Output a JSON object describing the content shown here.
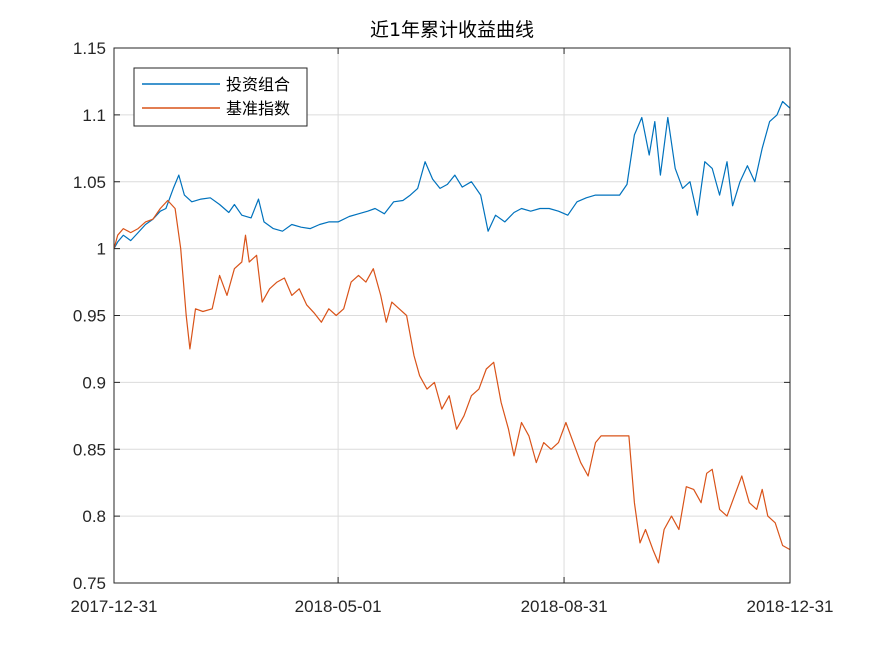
{
  "chart_data": {
    "type": "line",
    "title": "近1年累计收益曲线",
    "xlabel": "",
    "ylabel": "",
    "x_tick_labels": [
      "2017-12-31",
      "2018-05-01",
      "2018-08-31",
      "2018-12-31"
    ],
    "x_ticks": [
      "2017-12-31",
      "2018-05-01",
      "2018-08-31",
      "2018-12-31"
    ],
    "xlim": [
      "2017-12-31",
      "2018-12-31"
    ],
    "y_tick_labels": [
      "0.75",
      "0.8",
      "0.85",
      "0.9",
      "0.95",
      "1",
      "1.05",
      "1.1",
      "1.15"
    ],
    "y_ticks": [
      0.75,
      0.8,
      0.85,
      0.9,
      0.95,
      1.0,
      1.05,
      1.1,
      1.15
    ],
    "ylim": [
      0.75,
      1.15
    ],
    "grid": true,
    "legend_position": "top-left",
    "series": [
      {
        "name": "投资组合",
        "color": "#0072BD",
        "points": [
          [
            "2017-12-31",
            1.0
          ],
          [
            "2018-01-02",
            1.005
          ],
          [
            "2018-01-05",
            1.01
          ],
          [
            "2018-01-09",
            1.006
          ],
          [
            "2018-01-13",
            1.012
          ],
          [
            "2018-01-17",
            1.018
          ],
          [
            "2018-01-21",
            1.022
          ],
          [
            "2018-01-25",
            1.028
          ],
          [
            "2018-01-28",
            1.03
          ],
          [
            "2018-02-01",
            1.045
          ],
          [
            "2018-02-04",
            1.055
          ],
          [
            "2018-02-07",
            1.04
          ],
          [
            "2018-02-11",
            1.035
          ],
          [
            "2018-02-16",
            1.037
          ],
          [
            "2018-02-21",
            1.038
          ],
          [
            "2018-02-26",
            1.033
          ],
          [
            "2018-03-03",
            1.027
          ],
          [
            "2018-03-06",
            1.033
          ],
          [
            "2018-03-10",
            1.025
          ],
          [
            "2018-03-15",
            1.023
          ],
          [
            "2018-03-19",
            1.037
          ],
          [
            "2018-03-22",
            1.02
          ],
          [
            "2018-03-27",
            1.015
          ],
          [
            "2018-04-01",
            1.013
          ],
          [
            "2018-04-06",
            1.018
          ],
          [
            "2018-04-11",
            1.016
          ],
          [
            "2018-04-16",
            1.015
          ],
          [
            "2018-04-21",
            1.018
          ],
          [
            "2018-04-26",
            1.02
          ],
          [
            "2018-05-01",
            1.02
          ],
          [
            "2018-05-07",
            1.024
          ],
          [
            "2018-05-12",
            1.026
          ],
          [
            "2018-05-17",
            1.028
          ],
          [
            "2018-05-21",
            1.03
          ],
          [
            "2018-05-26",
            1.026
          ],
          [
            "2018-05-31",
            1.035
          ],
          [
            "2018-06-05",
            1.036
          ],
          [
            "2018-06-09",
            1.04
          ],
          [
            "2018-06-13",
            1.045
          ],
          [
            "2018-06-17",
            1.065
          ],
          [
            "2018-06-21",
            1.052
          ],
          [
            "2018-06-25",
            1.045
          ],
          [
            "2018-06-29",
            1.048
          ],
          [
            "2018-07-03",
            1.055
          ],
          [
            "2018-07-07",
            1.046
          ],
          [
            "2018-07-12",
            1.05
          ],
          [
            "2018-07-17",
            1.04
          ],
          [
            "2018-07-21",
            1.013
          ],
          [
            "2018-07-25",
            1.025
          ],
          [
            "2018-07-30",
            1.02
          ],
          [
            "2018-08-04",
            1.027
          ],
          [
            "2018-08-08",
            1.03
          ],
          [
            "2018-08-13",
            1.028
          ],
          [
            "2018-08-18",
            1.03
          ],
          [
            "2018-08-23",
            1.03
          ],
          [
            "2018-08-28",
            1.028
          ],
          [
            "2018-09-02",
            1.025
          ],
          [
            "2018-09-07",
            1.035
          ],
          [
            "2018-09-12",
            1.038
          ],
          [
            "2018-09-17",
            1.04
          ],
          [
            "2018-09-21",
            1.04
          ],
          [
            "2018-09-26",
            1.04
          ],
          [
            "2018-09-30",
            1.04
          ],
          [
            "2018-10-04",
            1.048
          ],
          [
            "2018-10-08",
            1.085
          ],
          [
            "2018-10-12",
            1.098
          ],
          [
            "2018-10-16",
            1.07
          ],
          [
            "2018-10-19",
            1.095
          ],
          [
            "2018-10-22",
            1.055
          ],
          [
            "2018-10-26",
            1.098
          ],
          [
            "2018-10-30",
            1.06
          ],
          [
            "2018-11-03",
            1.045
          ],
          [
            "2018-11-07",
            1.05
          ],
          [
            "2018-11-11",
            1.025
          ],
          [
            "2018-11-15",
            1.065
          ],
          [
            "2018-11-19",
            1.06
          ],
          [
            "2018-11-23",
            1.04
          ],
          [
            "2018-11-27",
            1.065
          ],
          [
            "2018-11-30",
            1.032
          ],
          [
            "2018-12-04",
            1.05
          ],
          [
            "2018-12-08",
            1.062
          ],
          [
            "2018-12-12",
            1.05
          ],
          [
            "2018-12-16",
            1.075
          ],
          [
            "2018-12-20",
            1.095
          ],
          [
            "2018-12-24",
            1.1
          ],
          [
            "2018-12-27",
            1.11
          ],
          [
            "2018-12-31",
            1.105
          ]
        ]
      },
      {
        "name": "基准指数",
        "color": "#D95319",
        "points": [
          [
            "2017-12-31",
            1.0
          ],
          [
            "2018-01-02",
            1.01
          ],
          [
            "2018-01-05",
            1.015
          ],
          [
            "2018-01-09",
            1.012
          ],
          [
            "2018-01-13",
            1.015
          ],
          [
            "2018-01-17",
            1.02
          ],
          [
            "2018-01-21",
            1.022
          ],
          [
            "2018-01-25",
            1.03
          ],
          [
            "2018-01-29",
            1.036
          ],
          [
            "2018-02-02",
            1.03
          ],
          [
            "2018-02-05",
            1.0
          ],
          [
            "2018-02-08",
            0.95
          ],
          [
            "2018-02-10",
            0.925
          ],
          [
            "2018-02-13",
            0.955
          ],
          [
            "2018-02-17",
            0.953
          ],
          [
            "2018-02-22",
            0.955
          ],
          [
            "2018-02-26",
            0.98
          ],
          [
            "2018-03-02",
            0.965
          ],
          [
            "2018-03-06",
            0.985
          ],
          [
            "2018-03-10",
            0.99
          ],
          [
            "2018-03-12",
            1.01
          ],
          [
            "2018-03-14",
            0.99
          ],
          [
            "2018-03-18",
            0.995
          ],
          [
            "2018-03-21",
            0.96
          ],
          [
            "2018-03-25",
            0.97
          ],
          [
            "2018-03-29",
            0.975
          ],
          [
            "2018-04-02",
            0.978
          ],
          [
            "2018-04-06",
            0.965
          ],
          [
            "2018-04-10",
            0.97
          ],
          [
            "2018-04-14",
            0.958
          ],
          [
            "2018-04-18",
            0.952
          ],
          [
            "2018-04-22",
            0.945
          ],
          [
            "2018-04-26",
            0.955
          ],
          [
            "2018-04-30",
            0.95
          ],
          [
            "2018-05-04",
            0.955
          ],
          [
            "2018-05-08",
            0.975
          ],
          [
            "2018-05-12",
            0.98
          ],
          [
            "2018-05-16",
            0.975
          ],
          [
            "2018-05-20",
            0.985
          ],
          [
            "2018-05-24",
            0.965
          ],
          [
            "2018-05-27",
            0.945
          ],
          [
            "2018-05-30",
            0.96
          ],
          [
            "2018-06-03",
            0.955
          ],
          [
            "2018-06-07",
            0.95
          ],
          [
            "2018-06-11",
            0.92
          ],
          [
            "2018-06-14",
            0.905
          ],
          [
            "2018-06-18",
            0.895
          ],
          [
            "2018-06-22",
            0.9
          ],
          [
            "2018-06-26",
            0.88
          ],
          [
            "2018-06-30",
            0.89
          ],
          [
            "2018-07-04",
            0.865
          ],
          [
            "2018-07-08",
            0.875
          ],
          [
            "2018-07-12",
            0.89
          ],
          [
            "2018-07-16",
            0.895
          ],
          [
            "2018-07-20",
            0.91
          ],
          [
            "2018-07-24",
            0.915
          ],
          [
            "2018-07-28",
            0.885
          ],
          [
            "2018-08-01",
            0.865
          ],
          [
            "2018-08-04",
            0.845
          ],
          [
            "2018-08-08",
            0.87
          ],
          [
            "2018-08-12",
            0.86
          ],
          [
            "2018-08-16",
            0.84
          ],
          [
            "2018-08-20",
            0.855
          ],
          [
            "2018-08-24",
            0.85
          ],
          [
            "2018-08-28",
            0.855
          ],
          [
            "2018-09-01",
            0.87
          ],
          [
            "2018-09-05",
            0.855
          ],
          [
            "2018-09-09",
            0.84
          ],
          [
            "2018-09-13",
            0.83
          ],
          [
            "2018-09-17",
            0.855
          ],
          [
            "2018-09-20",
            0.86
          ],
          [
            "2018-09-24",
            0.86
          ],
          [
            "2018-09-28",
            0.86
          ],
          [
            "2018-10-01",
            0.86
          ],
          [
            "2018-10-05",
            0.86
          ],
          [
            "2018-10-08",
            0.81
          ],
          [
            "2018-10-11",
            0.78
          ],
          [
            "2018-10-14",
            0.79
          ],
          [
            "2018-10-18",
            0.775
          ],
          [
            "2018-10-21",
            0.765
          ],
          [
            "2018-10-24",
            0.79
          ],
          [
            "2018-10-28",
            0.8
          ],
          [
            "2018-11-01",
            0.79
          ],
          [
            "2018-11-05",
            0.822
          ],
          [
            "2018-11-09",
            0.82
          ],
          [
            "2018-11-13",
            0.81
          ],
          [
            "2018-11-16",
            0.832
          ],
          [
            "2018-11-19",
            0.835
          ],
          [
            "2018-11-23",
            0.805
          ],
          [
            "2018-11-27",
            0.8
          ],
          [
            "2018-12-01",
            0.815
          ],
          [
            "2018-12-05",
            0.83
          ],
          [
            "2018-12-09",
            0.81
          ],
          [
            "2018-12-13",
            0.805
          ],
          [
            "2018-12-16",
            0.82
          ],
          [
            "2018-12-19",
            0.8
          ],
          [
            "2018-12-23",
            0.795
          ],
          [
            "2018-12-27",
            0.778
          ],
          [
            "2018-12-31",
            0.775
          ]
        ]
      }
    ]
  }
}
